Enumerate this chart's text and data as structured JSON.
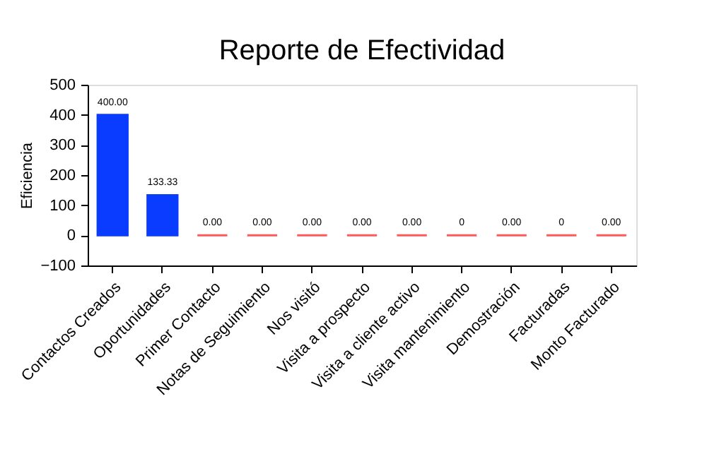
{
  "chart_data": {
    "type": "bar",
    "title": "Reporte de Efectividad",
    "ylabel": "Eficiencia",
    "categories": [
      "Contactos Creados",
      "Oportunidades",
      "Primer Contacto",
      "Notas de Seguimiento",
      "Nos visitó",
      "Visita a prospecto",
      "Visita a cliente activo",
      "Visita mantenimiento",
      "Demostración",
      "Facturadas",
      "Monto Facturado"
    ],
    "values": [
      400,
      133.33,
      0,
      0,
      0,
      0,
      0,
      0,
      0,
      0,
      0
    ],
    "colors": [
      "#0a3cff",
      "#0a3cff",
      "#ff5a5a",
      "#ff5a5a",
      "#ff5a5a",
      "#ff5a5a",
      "#ff5a5a",
      "#ff5a5a",
      "#ff5a5a",
      "#ff5a5a",
      "#ff5a5a"
    ],
    "value_labels": [
      "400.00",
      "133.33",
      "0.00",
      "0.00",
      "0.00",
      "0.00",
      "0.00",
      "0",
      "0.00",
      "0",
      "0.00"
    ],
    "ylim": [
      -100,
      500
    ],
    "yticks": [
      -100,
      0,
      100,
      200,
      300,
      400,
      500
    ],
    "grid": false
  }
}
